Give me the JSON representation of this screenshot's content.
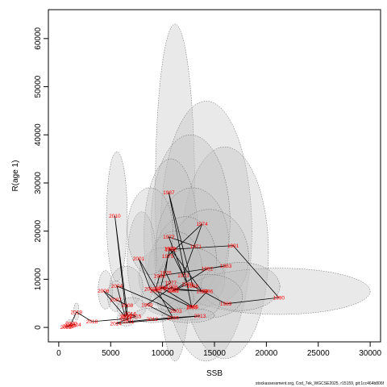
{
  "chart_data": {
    "type": "scatter",
    "xlabel": "SSB",
    "ylabel": "R(age 1)",
    "footer": "stockassessment.org, Cod_7ek_WGCSE2025, r15159, git:1cc464b806f",
    "xlim": [
      -1000,
      31000
    ],
    "ylim": [
      -3000,
      66000
    ],
    "x_ticks": [
      0,
      5000,
      10000,
      15000,
      20000,
      25000,
      30000
    ],
    "y_ticks": [
      0,
      10000,
      20000,
      30000,
      40000,
      50000,
      60000
    ],
    "grid": false,
    "connect_points": true,
    "colors": {
      "labels": "#ff0000",
      "ellipse_fill": "#bfbfbf",
      "ellipse_stroke": "#555555",
      "path": "#000000"
    },
    "points": [
      {
        "year": "1971",
        "ssb": 13200,
        "rec": 16800
      },
      {
        "year": "1972",
        "ssb": 10600,
        "rec": 18800
      },
      {
        "year": "1973",
        "ssb": 12000,
        "rec": 10800
      },
      {
        "year": "1974",
        "ssb": 13800,
        "rec": 21500
      },
      {
        "year": "1975",
        "ssb": 10500,
        "rec": 14800
      },
      {
        "year": "1976",
        "ssb": 10300,
        "rec": 11400
      },
      {
        "year": "1977",
        "ssb": 10800,
        "rec": 9300
      },
      {
        "year": "1978",
        "ssb": 9800,
        "rec": 8000
      },
      {
        "year": "1979",
        "ssb": 10700,
        "rec": 16400
      },
      {
        "year": "1980",
        "ssb": 12400,
        "rec": 9000
      },
      {
        "year": "1981",
        "ssb": 11000,
        "rec": 7600
      },
      {
        "year": "1982",
        "ssb": 14300,
        "rec": 12200
      },
      {
        "year": "1983",
        "ssb": 16100,
        "rec": 12800
      },
      {
        "year": "1984",
        "ssb": 9700,
        "rec": 10700
      },
      {
        "year": "1985",
        "ssb": 9300,
        "rec": 7700
      },
      {
        "year": "1986",
        "ssb": 12800,
        "rec": 4200
      },
      {
        "year": "1987",
        "ssb": 10600,
        "rec": 28000
      },
      {
        "year": "1988",
        "ssb": 12900,
        "rec": 8600
      },
      {
        "year": "1989",
        "ssb": 16100,
        "rec": 4900
      },
      {
        "year": "1990",
        "ssb": 21200,
        "rec": 6200
      },
      {
        "year": "1991",
        "ssb": 16800,
        "rec": 17000
      },
      {
        "year": "1992",
        "ssb": 10800,
        "rec": 16200
      },
      {
        "year": "1993",
        "ssb": 13800,
        "rec": 7500
      },
      {
        "year": "1994",
        "ssb": 9900,
        "rec": 8300
      },
      {
        "year": "1995",
        "ssb": 12900,
        "rec": 4300
      },
      {
        "year": "1996",
        "ssb": 14300,
        "rec": 7500
      },
      {
        "year": "1997",
        "ssb": 11100,
        "rec": 7800
      },
      {
        "year": "1998",
        "ssb": 10900,
        "rec": 8400
      },
      {
        "year": "1999",
        "ssb": 8500,
        "rec": 4700
      },
      {
        "year": "2000",
        "ssb": 11000,
        "rec": 2000
      },
      {
        "year": "2001",
        "ssb": 7700,
        "rec": 14300
      },
      {
        "year": "2002",
        "ssb": 8800,
        "rec": 8000
      },
      {
        "year": "2003",
        "ssb": 11300,
        "rec": 3400
      },
      {
        "year": "2004",
        "ssb": 5600,
        "rec": 8600
      },
      {
        "year": "2005",
        "ssb": 6400,
        "rec": 2200
      },
      {
        "year": "2006",
        "ssb": 4300,
        "rec": 7600
      },
      {
        "year": "2007",
        "ssb": 5500,
        "rec": 5800
      },
      {
        "year": "2008",
        "ssb": 6600,
        "rec": 4600
      },
      {
        "year": "2009",
        "ssb": 6500,
        "rec": 2400
      },
      {
        "year": "2010",
        "ssb": 5400,
        "rec": 23200
      },
      {
        "year": "2011",
        "ssb": 6700,
        "rec": 1200
      },
      {
        "year": "2012",
        "ssb": 9000,
        "rec": 1700
      },
      {
        "year": "2013",
        "ssb": 13600,
        "rec": 2400
      },
      {
        "year": "2014",
        "ssb": 5500,
        "rec": 800
      },
      {
        "year": "2015",
        "ssb": 7400,
        "rec": 2300
      },
      {
        "year": "2016",
        "ssb": 6900,
        "rec": 2800
      },
      {
        "year": "2017",
        "ssb": 6500,
        "rec": 1800
      },
      {
        "year": "2018",
        "ssb": 3200,
        "rec": 1200
      },
      {
        "year": "2019",
        "ssb": 1700,
        "rec": 3200
      },
      {
        "year": "2020",
        "ssb": 1200,
        "rec": 800
      },
      {
        "year": "2021",
        "ssb": 900,
        "rec": 200
      },
      {
        "year": "2022",
        "ssb": 700,
        "rec": 100
      },
      {
        "year": "2023",
        "ssb": 1100,
        "rec": 400
      },
      {
        "year": "2024",
        "ssb": 1600,
        "rec": 600
      }
    ],
    "confidence_regions": [
      {
        "ssb": 11200,
        "rec": 28000,
        "ssb_half_width": 1900,
        "rec_half_height": 35000
      },
      {
        "ssb": 14200,
        "rec": 20000,
        "ssb_half_width": 4400,
        "rec_half_height": 27000
      },
      {
        "ssb": 16000,
        "rec": 15500,
        "ssb_half_width": 4200,
        "rec_half_height": 22000
      },
      {
        "ssb": 12700,
        "rec": 22000,
        "ssb_half_width": 3800,
        "rec_half_height": 18000
      },
      {
        "ssb": 10800,
        "rec": 19000,
        "ssb_half_width": 2600,
        "rec_half_height": 16000
      },
      {
        "ssb": 12900,
        "rec": 17000,
        "ssb_half_width": 3500,
        "rec_half_height": 12000
      },
      {
        "ssb": 14500,
        "rec": 14500,
        "ssb_half_width": 3800,
        "rec_half_height": 10000
      },
      {
        "ssb": 12200,
        "rec": 14000,
        "ssb_half_width": 3000,
        "rec_half_height": 9000
      },
      {
        "ssb": 11200,
        "rec": 12000,
        "ssb_half_width": 2600,
        "rec_half_height": 8000
      },
      {
        "ssb": 12800,
        "rec": 10000,
        "ssb_half_width": 3200,
        "rec_half_height": 6500
      },
      {
        "ssb": 9900,
        "rec": 10500,
        "ssb_half_width": 2200,
        "rec_half_height": 6000
      },
      {
        "ssb": 8000,
        "rec": 14000,
        "ssb_half_width": 1400,
        "rec_half_height": 10000
      },
      {
        "ssb": 8800,
        "rec": 20000,
        "ssb_half_width": 2200,
        "rec_half_height": 9000
      },
      {
        "ssb": 5600,
        "rec": 23000,
        "ssb_half_width": 1000,
        "rec_half_height": 13500
      },
      {
        "ssb": 21200,
        "rec": 7500,
        "ssb_half_width": 8800,
        "rec_half_height": 4800
      },
      {
        "ssb": 17500,
        "rec": 8500,
        "ssb_half_width": 3800,
        "rec_half_height": 5000
      },
      {
        "ssb": 14500,
        "rec": 6500,
        "ssb_half_width": 3200,
        "rec_half_height": 4500
      },
      {
        "ssb": 12500,
        "rec": 5000,
        "ssb_half_width": 3000,
        "rec_half_height": 3500
      },
      {
        "ssb": 10500,
        "rec": 6000,
        "ssb_half_width": 2500,
        "rec_half_height": 3500
      },
      {
        "ssb": 6500,
        "rec": 8500,
        "ssb_half_width": 1600,
        "rec_half_height": 4200
      },
      {
        "ssb": 4500,
        "rec": 7800,
        "ssb_half_width": 700,
        "rec_half_height": 4000
      },
      {
        "ssb": 5500,
        "rec": 6500,
        "ssb_half_width": 800,
        "rec_half_height": 3200
      },
      {
        "ssb": 7000,
        "rec": 4000,
        "ssb_half_width": 1400,
        "rec_half_height": 2200
      },
      {
        "ssb": 9000,
        "rec": 2500,
        "ssb_half_width": 1800,
        "rec_half_height": 1500
      },
      {
        "ssb": 12500,
        "rec": 2500,
        "ssb_half_width": 2500,
        "rec_half_height": 1500
      },
      {
        "ssb": 6500,
        "rec": 1800,
        "ssb_half_width": 900,
        "rec_half_height": 1500
      },
      {
        "ssb": 1700,
        "rec": 3300,
        "ssb_half_width": 250,
        "rec_half_height": 1800
      },
      {
        "ssb": 1100,
        "rec": 800,
        "ssb_half_width": 400,
        "rec_half_height": 800
      }
    ]
  }
}
